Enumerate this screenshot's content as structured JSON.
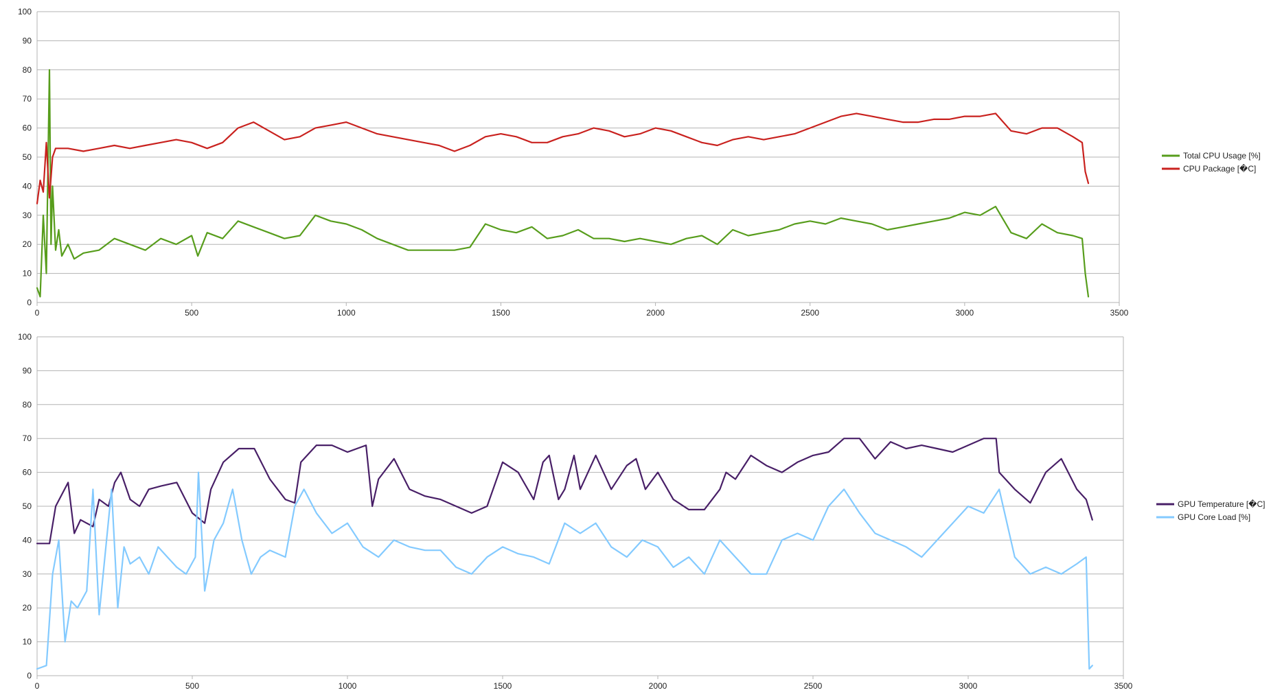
{
  "chart_data": [
    {
      "type": "line",
      "title": "",
      "xlabel": "",
      "ylabel": "",
      "xlim": [
        0,
        3500
      ],
      "ylim": [
        0,
        100
      ],
      "xticks": [
        0,
        500,
        1000,
        1500,
        2000,
        2500,
        3000,
        3500
      ],
      "yticks": [
        0,
        10,
        20,
        30,
        40,
        50,
        60,
        70,
        80,
        90,
        100
      ],
      "grid": true,
      "legend_position": "right",
      "series": [
        {
          "name": "Total CPU Usage [%]",
          "color": "#579d1c",
          "x": [
            0,
            10,
            20,
            30,
            40,
            45,
            50,
            60,
            70,
            80,
            100,
            120,
            150,
            200,
            250,
            300,
            350,
            400,
            450,
            500,
            520,
            550,
            600,
            650,
            700,
            750,
            800,
            850,
            900,
            950,
            1000,
            1050,
            1100,
            1150,
            1200,
            1250,
            1300,
            1350,
            1400,
            1450,
            1500,
            1550,
            1600,
            1650,
            1700,
            1750,
            1800,
            1850,
            1900,
            1950,
            2000,
            2050,
            2100,
            2150,
            2200,
            2250,
            2300,
            2350,
            2400,
            2450,
            2500,
            2550,
            2600,
            2650,
            2700,
            2750,
            2800,
            2850,
            2900,
            2950,
            3000,
            3050,
            3100,
            3150,
            3200,
            3250,
            3300,
            3350,
            3380,
            3390,
            3400
          ],
          "values": [
            5,
            2,
            30,
            10,
            80,
            20,
            40,
            18,
            25,
            16,
            20,
            15,
            17,
            18,
            22,
            20,
            18,
            22,
            20,
            23,
            16,
            24,
            22,
            28,
            26,
            24,
            22,
            23,
            30,
            28,
            27,
            25,
            22,
            20,
            18,
            18,
            18,
            18,
            19,
            27,
            25,
            24,
            26,
            22,
            23,
            25,
            22,
            22,
            21,
            22,
            21,
            20,
            22,
            23,
            20,
            25,
            23,
            24,
            25,
            27,
            28,
            27,
            29,
            28,
            27,
            25,
            26,
            27,
            28,
            29,
            31,
            30,
            33,
            24,
            22,
            27,
            24,
            23,
            22,
            10,
            2
          ]
        },
        {
          "name": "CPU Package [�C]",
          "color": "#c9211e",
          "x": [
            0,
            10,
            20,
            30,
            40,
            50,
            60,
            100,
            150,
            200,
            250,
            300,
            350,
            400,
            450,
            500,
            550,
            600,
            650,
            700,
            750,
            800,
            850,
            900,
            950,
            1000,
            1050,
            1100,
            1150,
            1200,
            1250,
            1300,
            1350,
            1400,
            1450,
            1500,
            1550,
            1600,
            1650,
            1700,
            1750,
            1800,
            1850,
            1900,
            1950,
            2000,
            2050,
            2100,
            2150,
            2200,
            2250,
            2300,
            2350,
            2400,
            2450,
            2500,
            2550,
            2600,
            2650,
            2700,
            2750,
            2800,
            2850,
            2900,
            2950,
            3000,
            3050,
            3100,
            3150,
            3200,
            3250,
            3300,
            3350,
            3380,
            3390,
            3400
          ],
          "values": [
            34,
            42,
            38,
            55,
            36,
            50,
            53,
            53,
            52,
            53,
            54,
            53,
            54,
            55,
            56,
            55,
            53,
            55,
            60,
            62,
            59,
            56,
            57,
            60,
            61,
            62,
            60,
            58,
            57,
            56,
            55,
            54,
            52,
            54,
            57,
            58,
            57,
            55,
            55,
            57,
            58,
            60,
            59,
            57,
            58,
            60,
            59,
            57,
            55,
            54,
            56,
            57,
            56,
            57,
            58,
            60,
            62,
            64,
            65,
            64,
            63,
            62,
            62,
            63,
            63,
            64,
            64,
            65,
            59,
            58,
            60,
            60,
            57,
            55,
            45,
            41
          ]
        }
      ]
    },
    {
      "type": "line",
      "title": "",
      "xlabel": "",
      "ylabel": "",
      "xlim": [
        0,
        3500
      ],
      "ylim": [
        0,
        100
      ],
      "xticks": [
        0,
        500,
        1000,
        1500,
        2000,
        2500,
        3000,
        3500
      ],
      "yticks": [
        0,
        10,
        20,
        30,
        40,
        50,
        60,
        70,
        80,
        90,
        100
      ],
      "grid": true,
      "legend_position": "right",
      "series": [
        {
          "name": "GPU Temperature [�C]",
          "color": "#481f67",
          "x": [
            0,
            40,
            60,
            100,
            120,
            140,
            180,
            200,
            230,
            250,
            270,
            300,
            330,
            360,
            400,
            450,
            500,
            540,
            560,
            600,
            650,
            700,
            750,
            800,
            830,
            850,
            900,
            950,
            1000,
            1060,
            1080,
            1100,
            1150,
            1200,
            1250,
            1300,
            1350,
            1400,
            1450,
            1500,
            1550,
            1600,
            1630,
            1650,
            1680,
            1700,
            1730,
            1750,
            1800,
            1850,
            1900,
            1930,
            1960,
            2000,
            2050,
            2100,
            2150,
            2200,
            2220,
            2250,
            2300,
            2350,
            2400,
            2450,
            2500,
            2550,
            2600,
            2650,
            2700,
            2750,
            2800,
            2850,
            2900,
            2950,
            3000,
            3050,
            3090,
            3100,
            3150,
            3200,
            3250,
            3300,
            3350,
            3380,
            3400
          ],
          "values": [
            39,
            39,
            50,
            57,
            42,
            46,
            44,
            52,
            50,
            57,
            60,
            52,
            50,
            55,
            56,
            57,
            48,
            45,
            55,
            63,
            67,
            67,
            58,
            52,
            51,
            63,
            68,
            68,
            66,
            68,
            50,
            58,
            64,
            55,
            53,
            52,
            50,
            48,
            50,
            63,
            60,
            52,
            63,
            65,
            52,
            55,
            65,
            55,
            65,
            55,
            62,
            64,
            55,
            60,
            52,
            49,
            49,
            55,
            60,
            58,
            65,
            62,
            60,
            63,
            65,
            66,
            70,
            70,
            64,
            69,
            67,
            68,
            67,
            66,
            68,
            70,
            70,
            60,
            55,
            51,
            60,
            64,
            55,
            52,
            46
          ]
        },
        {
          "name": "GPU Core Load [%]",
          "color": "#83caff",
          "x": [
            0,
            30,
            50,
            70,
            90,
            110,
            130,
            160,
            180,
            200,
            240,
            260,
            280,
            300,
            330,
            360,
            390,
            420,
            450,
            480,
            510,
            520,
            540,
            570,
            600,
            630,
            660,
            690,
            720,
            750,
            800,
            830,
            860,
            900,
            950,
            1000,
            1050,
            1100,
            1150,
            1200,
            1250,
            1300,
            1350,
            1400,
            1450,
            1500,
            1550,
            1600,
            1650,
            1700,
            1750,
            1800,
            1850,
            1900,
            1950,
            2000,
            2050,
            2100,
            2150,
            2200,
            2250,
            2300,
            2350,
            2400,
            2450,
            2500,
            2550,
            2600,
            2650,
            2700,
            2750,
            2800,
            2850,
            2900,
            2950,
            3000,
            3050,
            3100,
            3150,
            3200,
            3250,
            3300,
            3350,
            3380,
            3390,
            3400
          ],
          "values": [
            2,
            3,
            30,
            40,
            10,
            22,
            20,
            25,
            55,
            18,
            55,
            20,
            38,
            33,
            35,
            30,
            38,
            35,
            32,
            30,
            35,
            60,
            25,
            40,
            45,
            55,
            40,
            30,
            35,
            37,
            35,
            50,
            55,
            48,
            42,
            45,
            38,
            35,
            40,
            38,
            37,
            37,
            32,
            30,
            35,
            38,
            36,
            35,
            33,
            45,
            42,
            45,
            38,
            35,
            40,
            38,
            32,
            35,
            30,
            40,
            35,
            30,
            30,
            40,
            42,
            40,
            50,
            55,
            48,
            42,
            40,
            38,
            35,
            40,
            45,
            50,
            48,
            55,
            35,
            30,
            32,
            30,
            33,
            35,
            2,
            3
          ]
        }
      ]
    }
  ]
}
